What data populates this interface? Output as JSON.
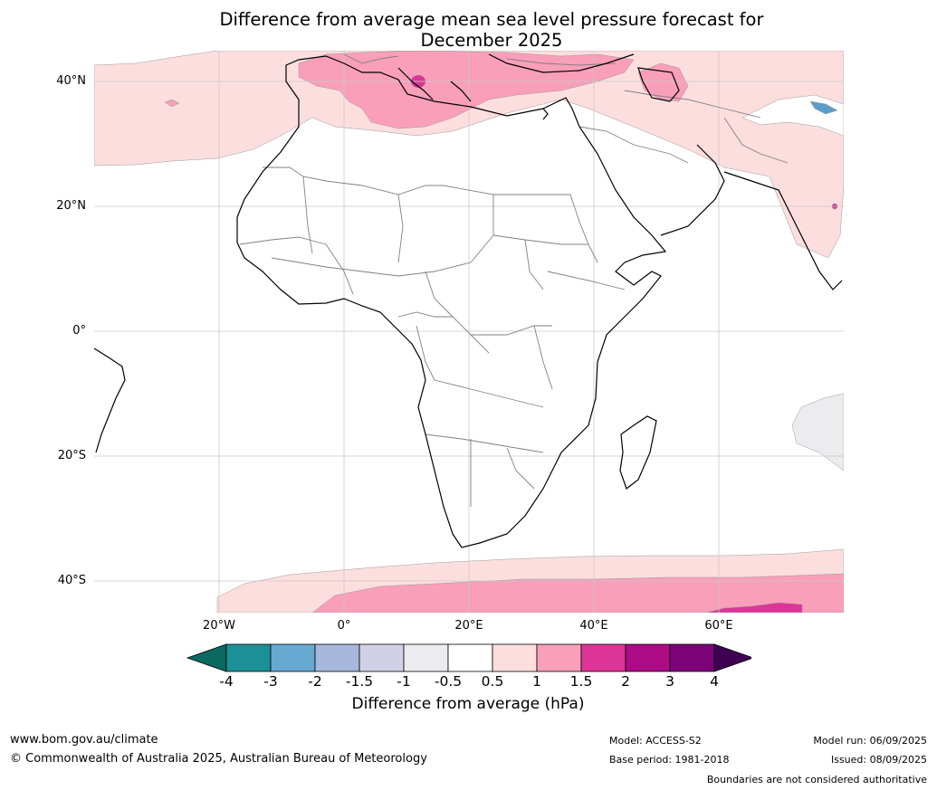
{
  "title_line1": "Difference from average mean sea level pressure forecast for",
  "title_line2": "December 2025",
  "map": {
    "lat_labels": [
      "40°N",
      "20°N",
      "0°",
      "20°S",
      "40°S"
    ],
    "lon_labels": [
      "20°W",
      "0°",
      "20°E",
      "40°E",
      "60°E"
    ],
    "colors": {
      "light_pink": "#fddede",
      "medium_pink": "#f99fba",
      "magenta": "#dd3597",
      "grey": "#ececef",
      "blue": "#5b9cc9",
      "land_border": "#000000",
      "country_border": "#808080",
      "grid": "#c8c8c8"
    }
  },
  "colorbar": {
    "ticks": [
      "-4",
      "-3",
      "-2",
      "-1.5",
      "-1",
      "-0.5",
      "0.5",
      "1",
      "1.5",
      "2",
      "3",
      "4"
    ],
    "under_color": "#0a6a61",
    "over_color": "#3f0054",
    "colors": [
      "#1b9096",
      "#68a9d1",
      "#a6b8dc",
      "#d0d1e6",
      "#ececef",
      "#ffffff",
      "#fddede",
      "#f99fba",
      "#dd3597",
      "#ad0a85",
      "#7b0277"
    ],
    "label": "Difference from average (hPa)"
  },
  "footer": {
    "url": "www.bom.gov.au/climate",
    "copyright": "© Commonwealth of Australia 2025, Australian Bureau of Meteorology",
    "model": "Model: ACCESS-S2",
    "base_period": "Base period: 1981-2018",
    "model_run": "Model run: 06/09/2025",
    "issued": "Issued: 08/09/2025",
    "boundaries": "Boundaries are not considered authoritative"
  }
}
